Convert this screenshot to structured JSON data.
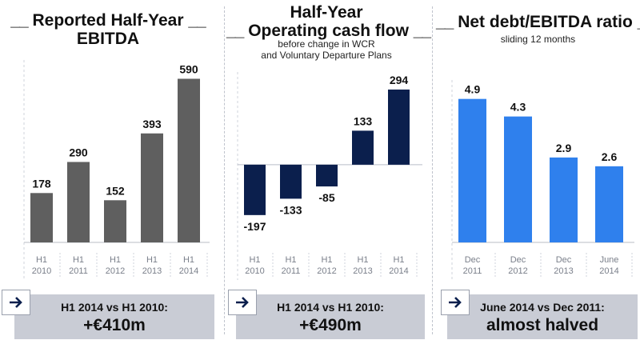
{
  "panel1": {
    "title_line1": "Reported Half-Year",
    "title_line2": "EBITDA",
    "callout_line1": "H1 2014 vs H1 2010:",
    "callout_line2": "+€410m"
  },
  "panel2": {
    "title_line1": "Half-Year",
    "title_line2": "Operating cash flow",
    "subtitle_line1": "before change in WCR",
    "subtitle_line2": "and Voluntary Departure Plans",
    "callout_line1": "H1 2014 vs H1 2010:",
    "callout_line2": "+€490m"
  },
  "panel3": {
    "title": "Net debt/EBITDA ratio",
    "subtitle": "sliding 12 months",
    "callout_line1": "June 2014 vs Dec 2011:",
    "callout_line2": "almost halved"
  },
  "decor": {
    "dash_left": "__",
    "dash_right": "__"
  },
  "icons": {
    "callout_arrow": "arrow-right-icon"
  },
  "colors": {
    "ebitda_bar": "#5f5f5f",
    "cashflow_bar": "#0b1f4d",
    "ratio_bar": "#2f80ed",
    "callout_bg": "#c9ccd5"
  },
  "chart_data": [
    {
      "type": "bar",
      "title": "Reported Half-Year EBITDA",
      "categories": [
        [
          "H1",
          "2010"
        ],
        [
          "H1",
          "2011"
        ],
        [
          "H1",
          "2012"
        ],
        [
          "H1",
          "2013"
        ],
        [
          "H1",
          "2014"
        ]
      ],
      "values": [
        178,
        290,
        152,
        393,
        590
      ],
      "value_labels": [
        "178",
        "290",
        "152",
        "393",
        "590"
      ],
      "ylim": [
        0,
        600
      ],
      "grid": false,
      "color": "#5f5f5f"
    },
    {
      "type": "bar",
      "title": "Half-Year Operating cash flow",
      "categories": [
        [
          "H1",
          "2010"
        ],
        [
          "H1",
          "2011"
        ],
        [
          "H1",
          "2012"
        ],
        [
          "H1",
          "2013"
        ],
        [
          "H1",
          "2014"
        ]
      ],
      "values": [
        -197,
        -133,
        -85,
        133,
        294
      ],
      "value_labels": [
        "-197",
        "-133",
        "-85",
        "133",
        "294"
      ],
      "ylim": [
        -210,
        300
      ],
      "grid": false,
      "color": "#0b1f4d"
    },
    {
      "type": "bar",
      "title": "Net debt/EBITDA ratio",
      "categories": [
        [
          "Dec",
          "2011"
        ],
        [
          "Dec",
          "2012"
        ],
        [
          "Dec",
          "2013"
        ],
        [
          "June",
          "2014"
        ]
      ],
      "values": [
        4.9,
        4.3,
        2.9,
        2.6
      ],
      "value_labels": [
        "4.9",
        "4.3",
        "2.9",
        "2.6"
      ],
      "ylim": [
        0,
        5
      ],
      "grid": false,
      "color": "#2f80ed"
    }
  ]
}
